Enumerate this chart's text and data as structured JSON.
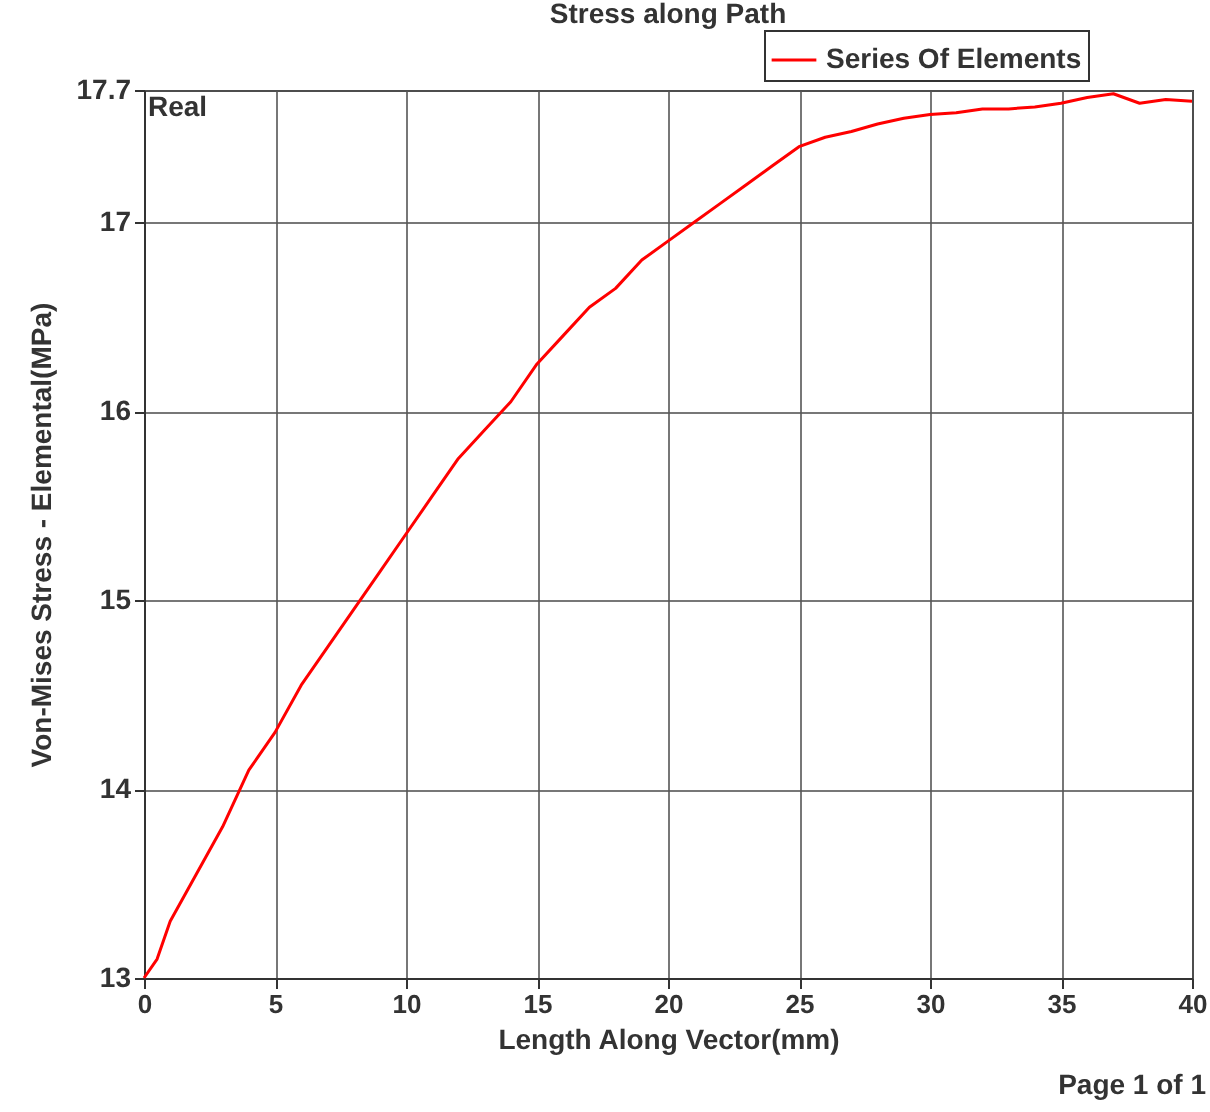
{
  "chart_data": {
    "type": "line",
    "title": "Stress along Path",
    "xlabel": "Length Along Vector(mm)",
    "ylabel": "Von-Mises Stress - Elemental(MPa)",
    "x": [
      0,
      0.5,
      1,
      2,
      3,
      4,
      5,
      6,
      7,
      8,
      9,
      10,
      11,
      12,
      13,
      14,
      15,
      16,
      17,
      18,
      19,
      20,
      21,
      22,
      23,
      24,
      25,
      26,
      27,
      28,
      29,
      30,
      31,
      32,
      33,
      34,
      35,
      36,
      37,
      38,
      39,
      40
    ],
    "series": [
      {
        "name": "Series Of Elements",
        "color": "#ff0000",
        "values": [
          13.0,
          13.1,
          13.3,
          13.55,
          13.8,
          14.1,
          14.3,
          14.55,
          14.75,
          14.95,
          15.15,
          15.35,
          15.55,
          15.75,
          15.9,
          16.05,
          16.25,
          16.4,
          16.55,
          16.65,
          16.8,
          16.9,
          17.0,
          17.1,
          17.2,
          17.3,
          17.4,
          17.45,
          17.48,
          17.52,
          17.55,
          17.57,
          17.58,
          17.6,
          17.6,
          17.61,
          17.63,
          17.66,
          17.68,
          17.63,
          17.65,
          17.64
        ]
      }
    ],
    "xlim": [
      0,
      40
    ],
    "ylim": [
      13,
      17.7
    ],
    "xticks": [
      0,
      5,
      10,
      15,
      20,
      25,
      30,
      35,
      40
    ],
    "yticks": [
      13,
      14,
      15,
      16,
      17,
      17.7
    ],
    "grid": true,
    "legend": "top right",
    "marker": "none",
    "line_style": "solid",
    "annotations": [
      "Real",
      "Page 1 of 1"
    ]
  }
}
